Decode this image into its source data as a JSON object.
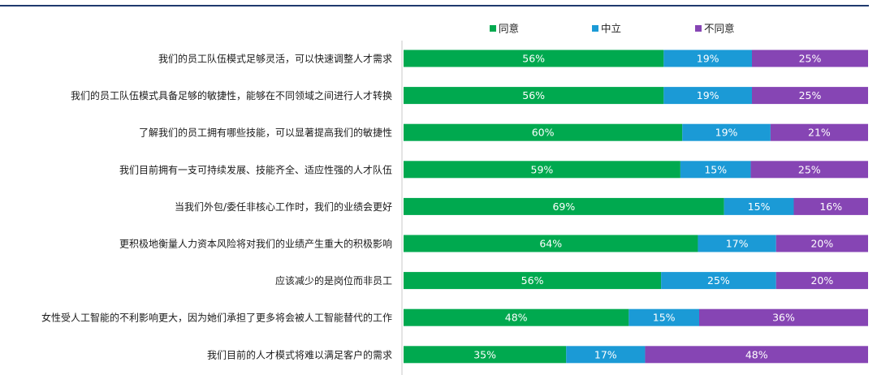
{
  "chart_data": {
    "type": "bar",
    "orientation": "horizontal",
    "stacked": true,
    "percent_stacked": true,
    "grid": false,
    "legend_position": "top",
    "categories": [
      "我们的员工队伍模式足够灵活，可以快速调整人才需求",
      "我们的员工队伍模式具备足够的敏捷性，能够在不同领域之间进行人才转换",
      "了解我们的员工拥有哪些技能，可以显著提高我们的敏捷性",
      "我们目前拥有一支可持续发展、技能齐全、适应性强的人才队伍",
      "当我们外包/委任非核心工作时，我们的业绩会更好",
      "更积极地衡量人力资本风险将对我们的业绩产生重大的积极影响",
      "应该减少的是岗位而非员工",
      "女性受人工智能的不利影响更大，因为她们承担了更多将会被人工智能替代的工作",
      "我们目前的人才模式将难以满足客户的需求"
    ],
    "series": [
      {
        "name": "同意",
        "color": "#00a94f",
        "values": [
          56,
          56,
          60,
          59,
          69,
          64,
          56,
          48,
          35
        ]
      },
      {
        "name": "中立",
        "color": "#1b9ad6",
        "values": [
          19,
          19,
          19,
          15,
          15,
          17,
          25,
          15,
          17
        ]
      },
      {
        "name": "不同意",
        "color": "#8645b4",
        "values": [
          25,
          25,
          21,
          25,
          16,
          20,
          20,
          36,
          48
        ]
      }
    ],
    "value_suffix": "%"
  }
}
